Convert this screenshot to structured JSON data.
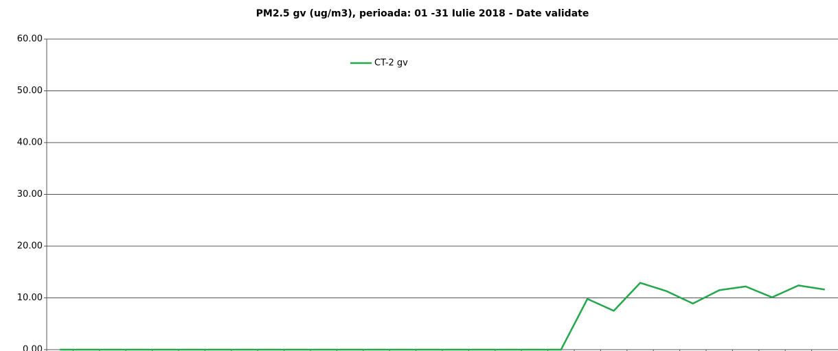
{
  "chart_data": {
    "type": "line",
    "title": "PM2.5 gv (ug/m3), perioada: 01 -31 Iulie 2018 - Date validate",
    "categories": [
      null,
      null,
      null,
      null,
      null,
      null,
      null,
      null,
      null,
      null,
      null,
      null,
      null,
      null,
      null,
      null,
      null,
      null,
      null,
      null,
      null,
      null,
      null,
      null,
      null,
      null,
      null,
      null,
      null,
      null
    ],
    "series": [
      {
        "name": "CT-2 gv",
        "color": "#22a84a",
        "values": [
          0,
          0,
          0,
          0,
          0,
          0,
          0,
          0,
          0,
          0,
          0,
          0,
          0,
          0,
          0,
          0,
          0,
          0,
          0,
          0,
          9.8,
          7.5,
          12.9,
          11.3,
          8.9,
          11.5,
          12.2,
          10.1,
          12.4,
          11.6
        ]
      }
    ],
    "ylim": [
      0,
      60
    ],
    "yticks": [
      {
        "value": 0,
        "label": "0.00"
      },
      {
        "value": 10,
        "label": "10.00"
      },
      {
        "value": 20,
        "label": "20.00"
      },
      {
        "value": 30,
        "label": "30.00"
      },
      {
        "value": 40,
        "label": "40.00"
      },
      {
        "value": 50,
        "label": "50.00"
      },
      {
        "value": 60,
        "label": "60.00"
      }
    ],
    "grid": true
  }
}
